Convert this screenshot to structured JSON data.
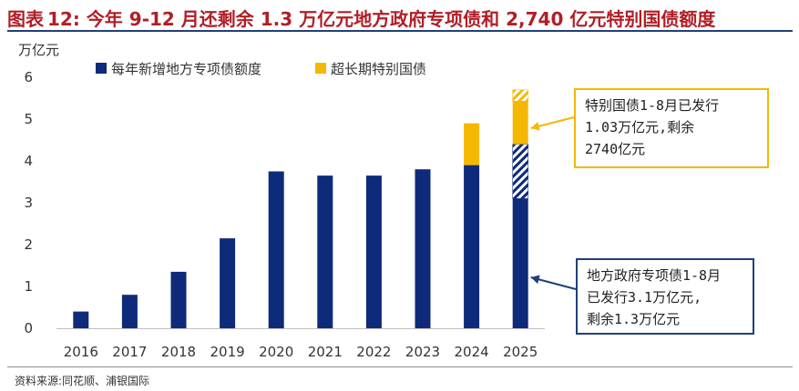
{
  "figure": {
    "label": "图表",
    "number": "12:",
    "title": "今年 9-12 月还剩余 1.3 万亿元地方政府专项债和 2,740 亿元特别国债额度"
  },
  "source": "资料来源:同花顺、浦银国际",
  "colors": {
    "local_bond": "#0e2a7a",
    "special_bond": "#f5b800",
    "title": "#b11e26",
    "local_note_border": "#1f3f7a",
    "special_note_border": "#f5b800"
  },
  "chart_data": {
    "type": "bar",
    "stacked": true,
    "ylabel": "万亿元",
    "ylim": [
      0,
      6
    ],
    "yticks": [
      "0",
      "1",
      "2",
      "3",
      "4",
      "5",
      "6"
    ],
    "grid": false,
    "legend_position": "top-left",
    "categories": [
      "2016",
      "2017",
      "2018",
      "2019",
      "2020",
      "2021",
      "2022",
      "2023",
      "2024",
      "2025"
    ],
    "series": [
      {
        "name": "每年新增地方专项债额度",
        "values": [
          0.4,
          0.8,
          1.35,
          2.15,
          3.75,
          3.65,
          3.65,
          3.8,
          3.9,
          4.4
        ]
      },
      {
        "name": "超长期特别国债",
        "values": [
          0,
          0,
          0,
          0,
          0,
          0,
          0,
          0,
          1.0,
          1.3
        ]
      }
    ],
    "remaining_2025": {
      "local_bond_remaining_from": 3.1,
      "local_bond_remaining_to": 4.4,
      "special_bond_remaining_from": 5.43,
      "special_bond_remaining_to": 5.7
    },
    "annotations": [
      {
        "target": "special_bond_2025",
        "lines": [
          "特别国债1-8月已发行",
          "1.03万亿元,剩余",
          "2740亿元"
        ]
      },
      {
        "target": "local_bond_2025",
        "lines": [
          "地方政府专项债1-8月",
          "已发行3.1万亿元,",
          "剩余1.3万亿元"
        ]
      }
    ]
  }
}
